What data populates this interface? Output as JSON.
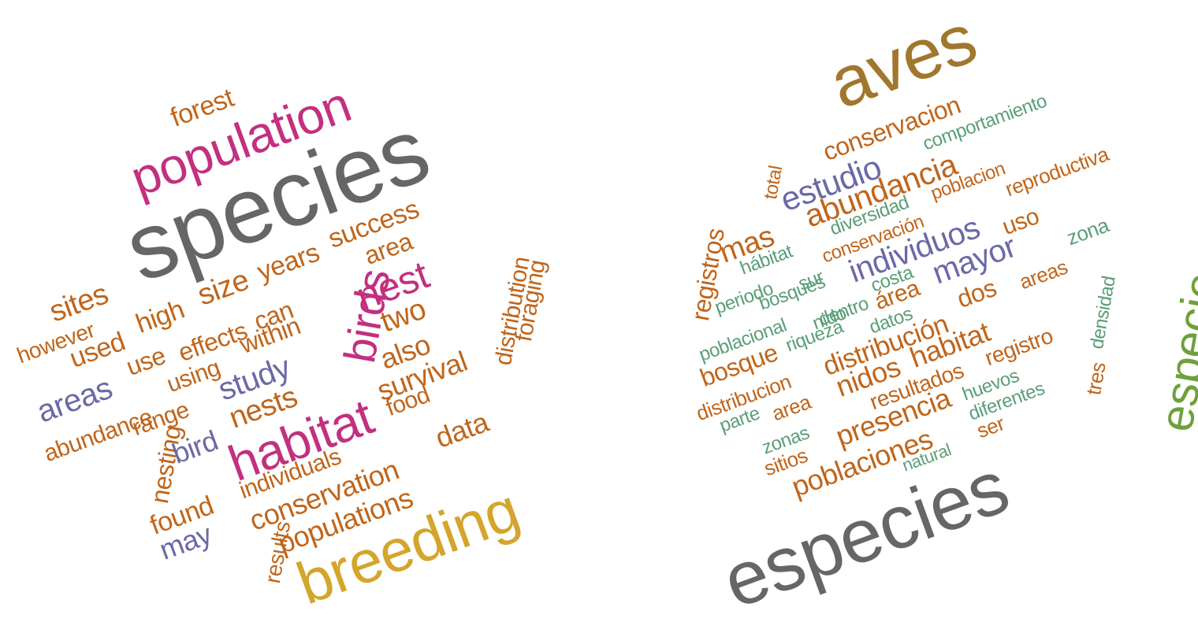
{
  "colors": {
    "magenta": "#c2307f",
    "gray": "#666666",
    "orange": "#c0651a",
    "purple": "#6b68a8",
    "gold": "#d4a52c",
    "olive": "#a0772c",
    "teal": "#5a9e77",
    "green": "#6ea13a"
  },
  "english_cloud": [
    {
      "text": "forest",
      "color": "orange"
    },
    {
      "text": "population",
      "color": "magenta"
    },
    {
      "text": "species",
      "color": "gray"
    },
    {
      "text": "success",
      "color": "orange"
    },
    {
      "text": "years",
      "color": "orange"
    },
    {
      "text": "area",
      "color": "orange"
    },
    {
      "text": "size",
      "color": "orange"
    },
    {
      "text": "sites",
      "color": "orange"
    },
    {
      "text": "however",
      "color": "orange"
    },
    {
      "text": "used",
      "color": "orange"
    },
    {
      "text": "high",
      "color": "orange"
    },
    {
      "text": "can",
      "color": "orange"
    },
    {
      "text": "birds",
      "color": "magenta"
    },
    {
      "text": "nest",
      "color": "magenta"
    },
    {
      "text": "two",
      "color": "orange"
    },
    {
      "text": "distribution",
      "color": "orange"
    },
    {
      "text": "foraging",
      "color": "orange"
    },
    {
      "text": "areas",
      "color": "purple"
    },
    {
      "text": "use",
      "color": "orange"
    },
    {
      "text": "effects",
      "color": "orange"
    },
    {
      "text": "within",
      "color": "orange"
    },
    {
      "text": "using",
      "color": "orange"
    },
    {
      "text": "study",
      "color": "purple"
    },
    {
      "text": "also",
      "color": "orange"
    },
    {
      "text": "survival",
      "color": "orange"
    },
    {
      "text": "food",
      "color": "orange"
    },
    {
      "text": "abundance",
      "color": "orange"
    },
    {
      "text": "range",
      "color": "orange"
    },
    {
      "text": "nesting",
      "color": "orange"
    },
    {
      "text": "bird",
      "color": "purple"
    },
    {
      "text": "nests",
      "color": "orange"
    },
    {
      "text": "habitat",
      "color": "magenta"
    },
    {
      "text": "individuals",
      "color": "orange"
    },
    {
      "text": "data",
      "color": "orange"
    },
    {
      "text": "conservation",
      "color": "orange"
    },
    {
      "text": "populations",
      "color": "orange"
    },
    {
      "text": "found",
      "color": "orange"
    },
    {
      "text": "may",
      "color": "purple"
    },
    {
      "text": "results",
      "color": "orange"
    },
    {
      "text": "breeding",
      "color": "gold"
    }
  ],
  "spanish_cloud": [
    {
      "text": "aves",
      "color": "olive"
    },
    {
      "text": "conservacion",
      "color": "orange"
    },
    {
      "text": "comportamiento",
      "color": "teal"
    },
    {
      "text": "estudio",
      "color": "purple"
    },
    {
      "text": "abundancia",
      "color": "orange"
    },
    {
      "text": "poblacion",
      "color": "orange"
    },
    {
      "text": "reproductiva",
      "color": "orange"
    },
    {
      "text": "total",
      "color": "orange"
    },
    {
      "text": "diversidad",
      "color": "teal"
    },
    {
      "text": "uso",
      "color": "orange"
    },
    {
      "text": "mas",
      "color": "orange"
    },
    {
      "text": "registros",
      "color": "orange"
    },
    {
      "text": "hábitat",
      "color": "teal"
    },
    {
      "text": "conservación",
      "color": "orange"
    },
    {
      "text": "individuos",
      "color": "purple"
    },
    {
      "text": "zona",
      "color": "teal"
    },
    {
      "text": "periodo",
      "color": "teal"
    },
    {
      "text": "sur",
      "color": "teal"
    },
    {
      "text": "mayor",
      "color": "purple"
    },
    {
      "text": "bosques",
      "color": "teal"
    },
    {
      "text": "costa",
      "color": "teal"
    },
    {
      "text": "areas",
      "color": "orange"
    },
    {
      "text": "especie",
      "color": "green"
    },
    {
      "text": "poblacional",
      "color": "teal"
    },
    {
      "text": "nido",
      "color": "teal"
    },
    {
      "text": "dentro",
      "color": "teal"
    },
    {
      "text": "área",
      "color": "orange"
    },
    {
      "text": "datos",
      "color": "teal"
    },
    {
      "text": "densidad",
      "color": "teal"
    },
    {
      "text": "dos",
      "color": "orange"
    },
    {
      "text": "riqueza",
      "color": "teal"
    },
    {
      "text": "bosque",
      "color": "orange"
    },
    {
      "text": "distribución",
      "color": "orange"
    },
    {
      "text": "registro",
      "color": "orange"
    },
    {
      "text": "habitat",
      "color": "orange"
    },
    {
      "text": "distribucion",
      "color": "orange"
    },
    {
      "text": "nidos",
      "color": "orange"
    },
    {
      "text": "resultados",
      "color": "orange"
    },
    {
      "text": "huevos",
      "color": "teal"
    },
    {
      "text": "tres",
      "color": "orange"
    },
    {
      "text": "parte",
      "color": "teal"
    },
    {
      "text": "area",
      "color": "orange"
    },
    {
      "text": "presencia",
      "color": "orange"
    },
    {
      "text": "diferentes",
      "color": "teal"
    },
    {
      "text": "zonas",
      "color": "teal"
    },
    {
      "text": "ser",
      "color": "orange"
    },
    {
      "text": "sitios",
      "color": "orange"
    },
    {
      "text": "poblaciones",
      "color": "orange"
    },
    {
      "text": "natural",
      "color": "teal"
    },
    {
      "text": "especies",
      "color": "gray"
    }
  ]
}
